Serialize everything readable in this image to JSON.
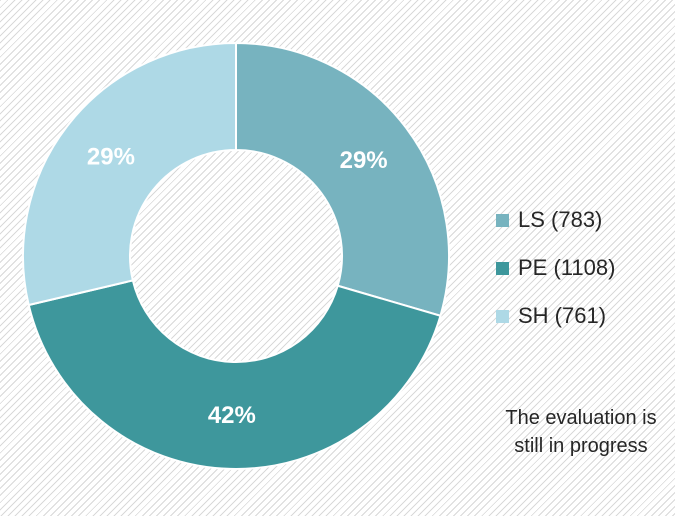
{
  "chart_data": {
    "type": "pie",
    "variant": "donut",
    "title": "",
    "slices": [
      {
        "label": "LS",
        "value": 783,
        "percent_label": "29%",
        "color": "#77b3bf",
        "legend": "LS (783)"
      },
      {
        "label": "PE",
        "value": 1108,
        "percent_label": "42%",
        "color": "#3e979c",
        "legend": "PE (1108)"
      },
      {
        "label": "SH",
        "value": 761,
        "percent_label": "29%",
        "color": "#aed9e6",
        "legend": "SH (761)"
      }
    ],
    "legend_position": "right"
  },
  "note": {
    "line1": "The evaluation is",
    "line2": "still in progress"
  }
}
